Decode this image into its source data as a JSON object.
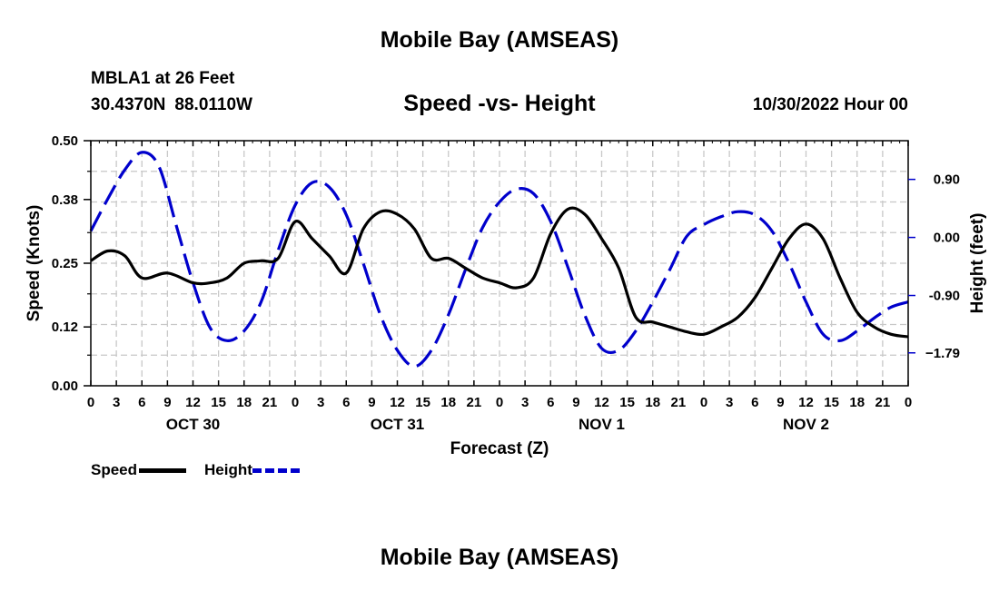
{
  "header": {
    "title": "Mobile Bay (AMSEAS)",
    "station": "MBLA1 at 26 Feet",
    "latitude": "30.4370N",
    "longitude": "88.0110W",
    "subtitle": "Speed -vs- Height",
    "issued": "10/30/2022 Hour 00"
  },
  "legend": {
    "speed_label": "Speed",
    "height_label": "Height"
  },
  "footer": {
    "title": "Mobile Bay (AMSEAS)"
  },
  "colors": {
    "speed": "#000000",
    "height": "#0000cc",
    "grid": "#c8c8c8"
  },
  "chart_data": {
    "type": "line",
    "title": "Speed -vs- Height",
    "xlabel": "Forecast (Z)",
    "ylabel": "Speed (Knots)",
    "y2label": "Height (feet)",
    "xlim": [
      0,
      96
    ],
    "ylim": [
      0,
      0.5
    ],
    "y2lim": [
      -2.3,
      1.5
    ],
    "x_tick_labels": [
      "0",
      "3",
      "6",
      "9",
      "12",
      "15",
      "18",
      "21",
      "0",
      "3",
      "6",
      "9",
      "12",
      "15",
      "18",
      "21",
      "0",
      "3",
      "6",
      "9",
      "12",
      "15",
      "18",
      "21",
      "0",
      "3",
      "6",
      "9",
      "12",
      "15",
      "18",
      "21",
      "0"
    ],
    "day_labels": [
      {
        "x": 12,
        "label": "OCT 30"
      },
      {
        "x": 36,
        "label": "OCT 31"
      },
      {
        "x": 60,
        "label": "NOV 1"
      },
      {
        "x": 84,
        "label": "NOV 2"
      }
    ],
    "y_ticks": [
      0.0,
      0.12,
      0.25,
      0.38,
      0.5
    ],
    "y_tick_labels": [
      "0.00",
      "0.12",
      "0.25",
      "0.38",
      "0.50"
    ],
    "y2_ticks": [
      0.9,
      0.0,
      -0.9,
      -1.79
    ],
    "y2_tick_labels": [
      "0.90",
      "0.00",
      "-0.90",
      "−1.79"
    ],
    "grid": true,
    "legend_position": "bottom-left",
    "series": [
      {
        "name": "Speed",
        "axis": "left",
        "style": "solid",
        "x": [
          0,
          2,
          4,
          6,
          9,
          12,
          14,
          16,
          18,
          20,
          22,
          24,
          26,
          28,
          30,
          32,
          34,
          36,
          38,
          40,
          42,
          44,
          46,
          48,
          50,
          52,
          54,
          56,
          58,
          60,
          62,
          64,
          66,
          68,
          70,
          72,
          74,
          76,
          78,
          80,
          82,
          84,
          86,
          88,
          90,
          92,
          94,
          96
        ],
        "y": [
          0.255,
          0.275,
          0.265,
          0.22,
          0.23,
          0.21,
          0.21,
          0.22,
          0.25,
          0.255,
          0.26,
          0.335,
          0.3,
          0.265,
          0.23,
          0.32,
          0.355,
          0.35,
          0.32,
          0.26,
          0.26,
          0.24,
          0.22,
          0.21,
          0.2,
          0.22,
          0.31,
          0.36,
          0.35,
          0.3,
          0.24,
          0.14,
          0.13,
          0.12,
          0.11,
          0.105,
          0.12,
          0.14,
          0.18,
          0.24,
          0.3,
          0.33,
          0.3,
          0.22,
          0.15,
          0.12,
          0.105,
          0.1
        ]
      },
      {
        "name": "Height",
        "axis": "right",
        "style": "dashed",
        "x": [
          0,
          2,
          4,
          6,
          8,
          10,
          12,
          14,
          16,
          18,
          20,
          22,
          24,
          26,
          28,
          30,
          32,
          34,
          36,
          38,
          40,
          42,
          44,
          46,
          48,
          50,
          52,
          54,
          56,
          58,
          60,
          62,
          64,
          66,
          68,
          70,
          72,
          74,
          76,
          78,
          80,
          82,
          84,
          86,
          88,
          90,
          92,
          94,
          96
        ],
        "y": [
          0.1,
          0.6,
          1.05,
          1.32,
          1.1,
          0.2,
          -0.7,
          -1.4,
          -1.6,
          -1.45,
          -1.0,
          -0.2,
          0.5,
          0.85,
          0.78,
          0.35,
          -0.4,
          -1.2,
          -1.75,
          -2.0,
          -1.75,
          -1.2,
          -0.5,
          0.15,
          0.55,
          0.75,
          0.68,
          0.25,
          -0.45,
          -1.2,
          -1.72,
          -1.75,
          -1.45,
          -1.0,
          -0.5,
          0.02,
          0.2,
          0.32,
          0.4,
          0.35,
          0.1,
          -0.4,
          -1.0,
          -1.5,
          -1.6,
          -1.45,
          -1.25,
          -1.08,
          -1.0
        ]
      }
    ]
  }
}
